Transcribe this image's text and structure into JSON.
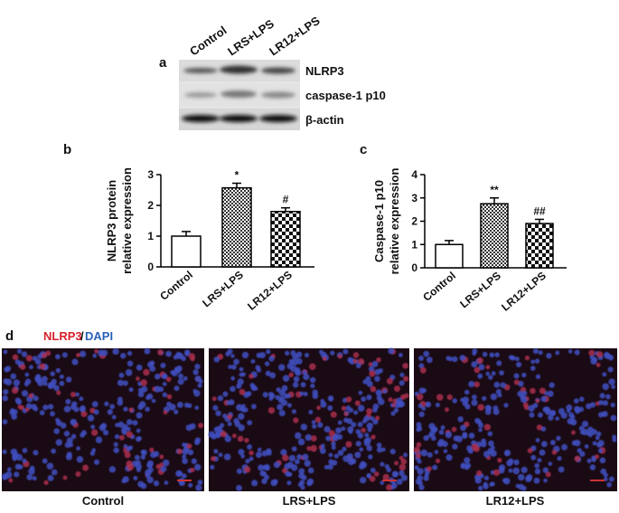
{
  "panel_labels": [
    "a",
    "b",
    "c",
    "d"
  ],
  "blot": {
    "lanes": [
      "Control",
      "LRS+LPS",
      "LR12+LPS"
    ],
    "bands": [
      "NLRP3",
      "caspase-1 p10",
      "β-actin"
    ]
  },
  "chart_data": [
    {
      "type": "bar",
      "y_label": [
        "NLRP3 protein",
        "relative expression"
      ],
      "categories": [
        "Control",
        "LRS+LPS",
        "LR12+LPS"
      ],
      "values": [
        1.0,
        2.57,
        1.8
      ],
      "errors": [
        0.15,
        0.15,
        0.12
      ],
      "annotations": [
        null,
        "*",
        "#"
      ],
      "fills": [
        "white",
        "fine-check",
        "coarse-check"
      ],
      "ylim": [
        0,
        3
      ],
      "yticks": [
        0,
        1,
        2,
        3
      ]
    },
    {
      "type": "bar",
      "y_label": [
        "Caspase-1 p10",
        "relative expression"
      ],
      "categories": [
        "Control",
        "LRS+LPS",
        "LR12+LPS"
      ],
      "values": [
        1.0,
        2.75,
        1.9
      ],
      "errors": [
        0.17,
        0.25,
        0.18
      ],
      "annotations": [
        null,
        "**",
        "##"
      ],
      "fills": [
        "white",
        "fine-check",
        "coarse-check"
      ],
      "ylim": [
        0,
        4
      ],
      "yticks": [
        0,
        1,
        2,
        3,
        4
      ]
    }
  ],
  "images": {
    "stain": [
      "NLRP3",
      "/",
      "DAPI"
    ],
    "captions": [
      "Control",
      "LRS+LPS",
      "LR12+LPS"
    ]
  }
}
